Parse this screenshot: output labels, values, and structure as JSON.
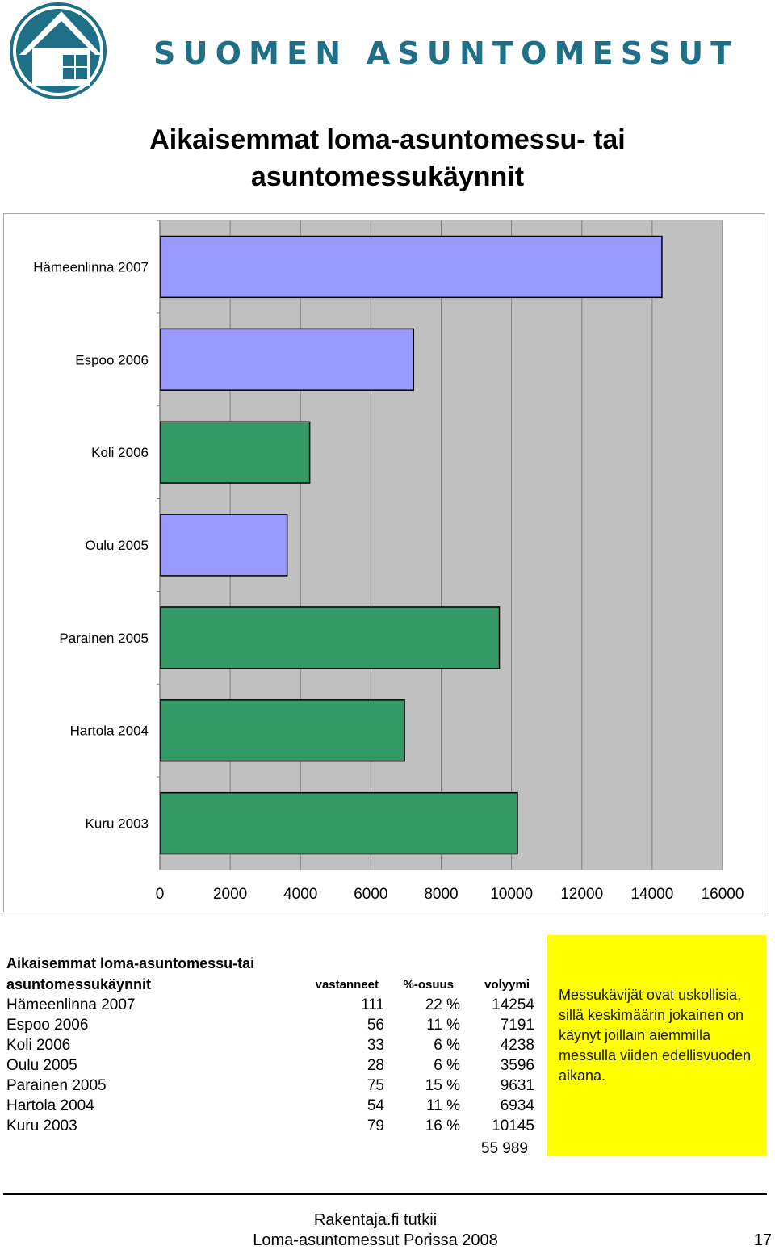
{
  "header": {
    "brand_text": "SUOMEN ASUNTOMESSUT",
    "logo_icon": "house-in-circle-logo",
    "brand_color": "#1f6f87"
  },
  "page_title": "Aikaisemmat loma-asuntomessu- tai asuntomessukäynnit",
  "chart_data": {
    "type": "bar",
    "orientation": "horizontal",
    "categories": [
      "Hämeenlinna 2007",
      "Espoo 2006",
      "Koli 2006",
      "Oulu 2005",
      "Parainen 2005",
      "Hartola 2004",
      "Kuru 2003"
    ],
    "values": [
      14254,
      7191,
      4238,
      3596,
      9631,
      6934,
      10145
    ],
    "bar_colors": [
      "#9999ff",
      "#9999ff",
      "#339966",
      "#9999ff",
      "#339966",
      "#339966",
      "#339966"
    ],
    "xlim": [
      0,
      16000
    ],
    "x_ticks": [
      "0",
      "2000",
      "4000",
      "6000",
      "8000",
      "10000",
      "12000",
      "14000",
      "16000"
    ],
    "title": "",
    "xlabel": "",
    "ylabel": "",
    "grid": "vertical",
    "plot_background": "#c0c0c0",
    "legend": "none"
  },
  "table": {
    "heading": "Aikaisemmat loma-asuntomessu-tai asuntomessukäynnit",
    "headers": {
      "respondents": "vastanneet",
      "share": "%-osuus",
      "volume": "volyymi"
    },
    "rows": [
      {
        "name": "Hämeenlinna 2007",
        "respondents": "111",
        "share": "22 %",
        "volume": "14254"
      },
      {
        "name": "Espoo 2006",
        "respondents": "56",
        "share": "11 %",
        "volume": "7191"
      },
      {
        "name": "Koli 2006",
        "respondents": "33",
        "share": "6 %",
        "volume": "4238"
      },
      {
        "name": "Oulu 2005",
        "respondents": "28",
        "share": "6 %",
        "volume": "3596"
      },
      {
        "name": "Parainen 2005",
        "respondents": "75",
        "share": "15 %",
        "volume": "9631"
      },
      {
        "name": "Hartola 2004",
        "respondents": "54",
        "share": "11 %",
        "volume": "6934"
      },
      {
        "name": "Kuru 2003",
        "respondents": "79",
        "share": "16 %",
        "volume": "10145"
      }
    ],
    "total_volume": "55 989"
  },
  "note": {
    "text": "Messukävijät ovat uskollisia, sillä keskimäärin jokainen on käynyt joillain aiemmilla messulla viiden edellisvuoden aikana.",
    "background": "#ffff00"
  },
  "footer": {
    "line1": "Rakentaja.fi tutkii",
    "line2": "Loma-asuntomessut Porissa 2008",
    "page_number": "17"
  }
}
